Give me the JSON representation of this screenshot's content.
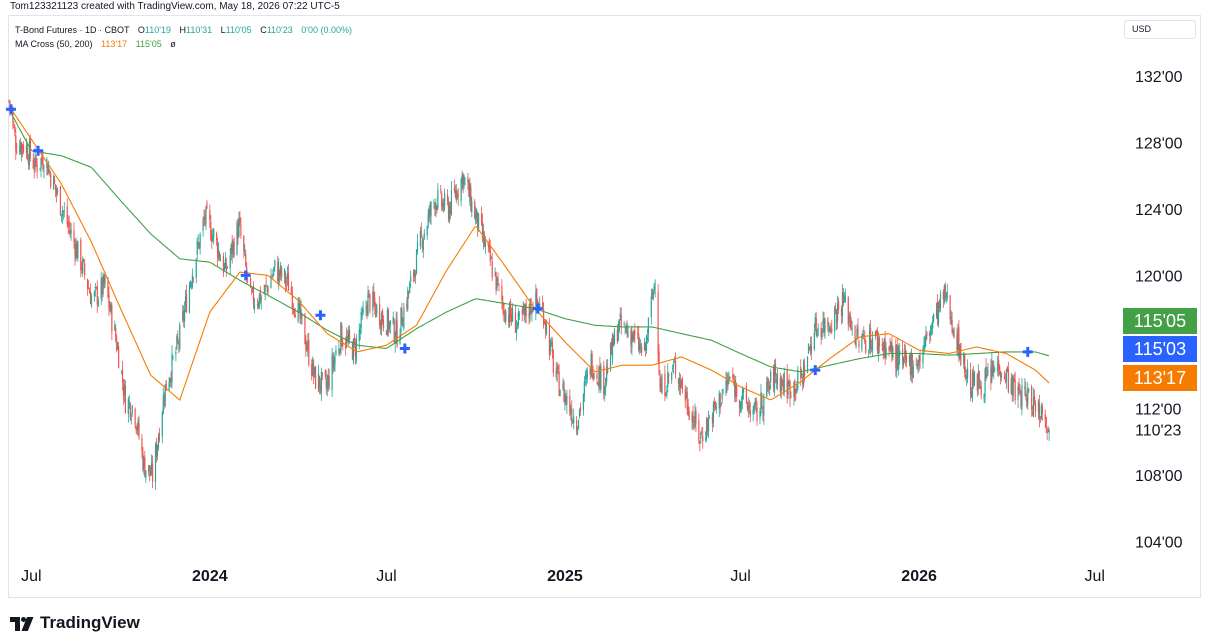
{
  "caption": "Tom123321123 created with TradingView.com, May 18, 2026 07:22 UTC-5",
  "legend": {
    "symbol": "T-Bond Futures · 1D · CBOT",
    "ohlc": [
      {
        "label": "O",
        "value": "110'19"
      },
      {
        "label": "H",
        "value": "110'31"
      },
      {
        "label": "L",
        "value": "110'05"
      },
      {
        "label": "C",
        "value": "110'23"
      }
    ],
    "change": "0'00 (0.00%)",
    "ma_title": "MA Cross (50, 200)",
    "ma_fast_value": "113'17",
    "ma_slow_value": "115'05",
    "ma_extra": "ø"
  },
  "currency": "USD",
  "brand": {
    "name": "TradingView",
    "icon": "tradingview-logo-icon"
  },
  "colors": {
    "up": "#26a69a",
    "down": "#ef5350",
    "ma_fast": "#f57c00",
    "ma_slow": "#43a047",
    "cross_marker": "#2962ff",
    "badge_slow": "#43a047",
    "badge_blue": "#2962ff",
    "badge_fast": "#f57c00"
  },
  "chart_data": {
    "type": "candlestick",
    "symbol": "T-Bond Futures",
    "interval": "1D",
    "y_axis": {
      "tick_labels": [
        "132'00",
        "128'00",
        "124'00",
        "120'00",
        "112'00",
        "110'23",
        "108'00",
        "104'00"
      ],
      "ticks": [
        132,
        128,
        124,
        120,
        112,
        110.72,
        108,
        104
      ],
      "range": [
        103.0,
        133.2
      ],
      "side": "right"
    },
    "x_axis": {
      "range": [
        "2023-06-08",
        "2026-07-25"
      ],
      "ticks": [
        {
          "date": "2023-07-01",
          "label": "Jul",
          "bold": false
        },
        {
          "date": "2024-01-01",
          "label": "2024",
          "bold": true
        },
        {
          "date": "2024-07-01",
          "label": "Jul",
          "bold": false
        },
        {
          "date": "2025-01-01",
          "label": "2025",
          "bold": true
        },
        {
          "date": "2025-07-01",
          "label": "Jul",
          "bold": false
        },
        {
          "date": "2026-01-01",
          "label": "2026",
          "bold": true
        },
        {
          "date": "2026-07-01",
          "label": "Jul",
          "bold": false
        }
      ]
    },
    "price_anchors": [
      [
        "2023-06-08",
        130.5
      ],
      [
        "2023-06-15",
        128.0
      ],
      [
        "2023-06-25",
        127.8
      ],
      [
        "2023-07-05",
        126.6
      ],
      [
        "2023-07-15",
        127.1
      ],
      [
        "2023-07-28",
        124.8
      ],
      [
        "2023-08-08",
        123.0
      ],
      [
        "2023-08-20",
        121.0
      ],
      [
        "2023-09-02",
        118.5
      ],
      [
        "2023-09-15",
        119.4
      ],
      [
        "2023-09-28",
        115.6
      ],
      [
        "2023-10-06",
        112.5
      ],
      [
        "2023-10-15",
        112.0
      ],
      [
        "2023-10-25",
        108.6
      ],
      [
        "2023-11-03",
        107.9
      ],
      [
        "2023-11-15",
        113.0
      ],
      [
        "2023-11-30",
        116.0
      ],
      [
        "2023-12-12",
        119.8
      ],
      [
        "2023-12-27",
        123.5
      ],
      [
        "2024-01-05",
        122.4
      ],
      [
        "2024-01-17",
        120.2
      ],
      [
        "2024-01-31",
        123.0
      ],
      [
        "2024-02-12",
        118.5
      ],
      [
        "2024-02-25",
        118.8
      ],
      [
        "2024-03-08",
        120.4
      ],
      [
        "2024-03-22",
        119.5
      ],
      [
        "2024-04-05",
        117.0
      ],
      [
        "2024-04-18",
        113.8
      ],
      [
        "2024-04-30",
        113.2
      ],
      [
        "2024-05-15",
        116.4
      ],
      [
        "2024-05-29",
        115.5
      ],
      [
        "2024-06-12",
        118.6
      ],
      [
        "2024-06-28",
        117.4
      ],
      [
        "2024-07-12",
        116.5
      ],
      [
        "2024-07-26",
        119.4
      ],
      [
        "2024-08-05",
        122.0
      ],
      [
        "2024-08-20",
        124.6
      ],
      [
        "2024-09-03",
        124.0
      ],
      [
        "2024-09-18",
        126.0
      ],
      [
        "2024-10-01",
        123.5
      ],
      [
        "2024-10-15",
        121.0
      ],
      [
        "2024-10-30",
        118.0
      ],
      [
        "2024-11-14",
        117.0
      ],
      [
        "2024-11-30",
        118.5
      ],
      [
        "2024-12-10",
        117.8
      ],
      [
        "2024-12-22",
        114.0
      ],
      [
        "2025-01-13",
        111.2
      ],
      [
        "2025-01-28",
        114.8
      ],
      [
        "2025-02-10",
        113.6
      ],
      [
        "2025-02-25",
        117.0
      ],
      [
        "2025-03-10",
        116.5
      ],
      [
        "2025-03-24",
        115.2
      ],
      [
        "2025-04-04",
        120.0
      ],
      [
        "2025-04-09",
        113.0
      ],
      [
        "2025-04-25",
        114.5
      ],
      [
        "2025-05-20",
        110.2
      ],
      [
        "2025-06-05",
        112.0
      ],
      [
        "2025-06-20",
        113.8
      ],
      [
        "2025-07-03",
        112.5
      ],
      [
        "2025-07-17",
        111.6
      ],
      [
        "2025-08-05",
        114.0
      ],
      [
        "2025-08-20",
        113.2
      ],
      [
        "2025-09-02",
        113.8
      ],
      [
        "2025-09-15",
        116.8
      ],
      [
        "2025-10-01",
        117.2
      ],
      [
        "2025-10-15",
        118.5
      ],
      [
        "2025-10-30",
        116.0
      ],
      [
        "2025-11-15",
        116.2
      ],
      [
        "2025-11-30",
        115.6
      ],
      [
        "2025-12-15",
        114.6
      ],
      [
        "2026-01-01",
        114.9
      ],
      [
        "2026-01-15",
        117.2
      ],
      [
        "2026-01-28",
        118.8
      ],
      [
        "2026-02-08",
        116.4
      ],
      [
        "2026-02-22",
        113.4
      ],
      [
        "2026-03-10",
        113.6
      ],
      [
        "2026-03-25",
        114.7
      ],
      [
        "2026-04-10",
        113.0
      ],
      [
        "2026-04-25",
        112.6
      ],
      [
        "2026-05-05",
        112.0
      ],
      [
        "2026-05-11",
        111.8
      ],
      [
        "2026-05-15",
        110.72
      ]
    ],
    "ma_fast_anchors": [
      [
        "2023-06-08",
        130.2
      ],
      [
        "2023-07-01",
        128.2
      ],
      [
        "2023-08-01",
        125.5
      ],
      [
        "2023-09-01",
        122.0
      ],
      [
        "2023-10-01",
        118.0
      ],
      [
        "2023-11-01",
        114.0
      ],
      [
        "2023-12-01",
        112.5
      ],
      [
        "2024-01-01",
        117.8
      ],
      [
        "2024-02-01",
        120.2
      ],
      [
        "2024-03-01",
        120.0
      ],
      [
        "2024-04-01",
        118.5
      ],
      [
        "2024-05-01",
        116.5
      ],
      [
        "2024-06-01",
        115.4
      ],
      [
        "2024-07-01",
        115.8
      ],
      [
        "2024-08-01",
        117.0
      ],
      [
        "2024-09-01",
        120.3
      ],
      [
        "2024-10-01",
        123.0
      ],
      [
        "2024-11-01",
        120.5
      ],
      [
        "2024-12-01",
        118.0
      ],
      [
        "2025-01-01",
        116.0
      ],
      [
        "2025-02-01",
        114.2
      ],
      [
        "2025-03-01",
        114.6
      ],
      [
        "2025-04-01",
        114.6
      ],
      [
        "2025-05-01",
        115.1
      ],
      [
        "2025-06-01",
        114.3
      ],
      [
        "2025-07-01",
        113.3
      ],
      [
        "2025-08-01",
        112.5
      ],
      [
        "2025-09-01",
        113.6
      ],
      [
        "2025-10-01",
        115.0
      ],
      [
        "2025-11-01",
        116.3
      ],
      [
        "2025-12-01",
        116.5
      ],
      [
        "2026-01-01",
        115.5
      ],
      [
        "2026-02-01",
        115.3
      ],
      [
        "2026-03-01",
        115.7
      ],
      [
        "2026-04-01",
        115.3
      ],
      [
        "2026-05-01",
        114.3
      ],
      [
        "2026-05-15",
        113.53
      ]
    ],
    "ma_slow_anchors": [
      [
        "2023-06-08",
        130.0
      ],
      [
        "2023-07-01",
        127.5
      ],
      [
        "2023-08-01",
        127.2
      ],
      [
        "2023-09-01",
        126.5
      ],
      [
        "2023-10-01",
        124.5
      ],
      [
        "2023-11-01",
        122.5
      ],
      [
        "2023-12-01",
        121.0
      ],
      [
        "2024-01-01",
        120.8
      ],
      [
        "2024-02-01",
        119.7
      ],
      [
        "2024-03-01",
        118.8
      ],
      [
        "2024-04-01",
        117.8
      ],
      [
        "2024-05-01",
        116.7
      ],
      [
        "2024-06-01",
        115.8
      ],
      [
        "2024-07-01",
        115.6
      ],
      [
        "2024-08-01",
        116.8
      ],
      [
        "2024-09-01",
        117.8
      ],
      [
        "2024-10-01",
        118.6
      ],
      [
        "2024-11-01",
        118.3
      ],
      [
        "2024-12-01",
        118.0
      ],
      [
        "2025-01-01",
        117.4
      ],
      [
        "2025-02-01",
        117.0
      ],
      [
        "2025-03-01",
        116.9
      ],
      [
        "2025-04-01",
        116.9
      ],
      [
        "2025-05-01",
        116.5
      ],
      [
        "2025-06-01",
        116.1
      ],
      [
        "2025-07-01",
        115.3
      ],
      [
        "2025-08-01",
        114.5
      ],
      [
        "2025-09-01",
        114.2
      ],
      [
        "2025-10-01",
        114.6
      ],
      [
        "2025-11-01",
        115.0
      ],
      [
        "2025-12-01",
        115.3
      ],
      [
        "2026-01-01",
        115.3
      ],
      [
        "2026-02-01",
        115.2
      ],
      [
        "2026-03-01",
        115.3
      ],
      [
        "2026-04-01",
        115.4
      ],
      [
        "2026-05-01",
        115.4
      ],
      [
        "2026-05-15",
        115.16
      ]
    ],
    "cross_markers": [
      {
        "date": "2023-06-10",
        "price": 130.0
      },
      {
        "date": "2023-07-08",
        "price": 127.5
      },
      {
        "date": "2024-02-07",
        "price": 120.0
      },
      {
        "date": "2024-04-24",
        "price": 117.6
      },
      {
        "date": "2024-07-20",
        "price": 115.6
      },
      {
        "date": "2024-12-04",
        "price": 118.0
      },
      {
        "date": "2025-09-16",
        "price": 114.3
      },
      {
        "date": "2026-04-23",
        "price": 115.4
      }
    ],
    "price_badges": [
      {
        "label": "115'05",
        "value": 115.16,
        "color": "#43a047",
        "size": "big"
      },
      {
        "label": "115'03",
        "value": 115.09,
        "color": "#2962ff",
        "size": "big"
      },
      {
        "label": "113'17",
        "value": 113.53,
        "color": "#f57c00",
        "size": "big"
      }
    ]
  }
}
